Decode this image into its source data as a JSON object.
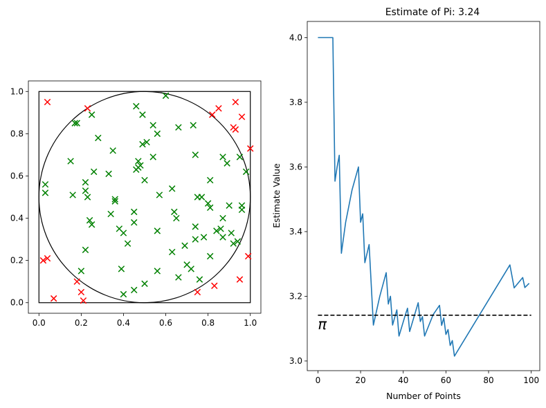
{
  "chart_data": [
    {
      "type": "scatter",
      "title": "",
      "xlabel": "",
      "ylabel": "",
      "xlim": [
        -0.05,
        1.05
      ],
      "ylim": [
        -0.05,
        1.05
      ],
      "x_ticks": [
        "0.0",
        "0.2",
        "0.4",
        "0.6",
        "0.8",
        "1.0"
      ],
      "y_ticks": [
        "0.0",
        "0.2",
        "0.4",
        "0.6",
        "0.8",
        "1.0"
      ],
      "shapes": {
        "square": {
          "x": [
            0,
            1
          ],
          "y": [
            0,
            1
          ]
        },
        "circle": {
          "center": [
            0.5,
            0.5
          ],
          "radius": 0.5
        }
      },
      "colors": {
        "inside": "#008000",
        "outside": "#ff0000",
        "outline": "#000000"
      },
      "series": [
        {
          "values": [
            [
              0.03,
              0.56
            ],
            [
              0.03,
              0.52
            ],
            [
              0.15,
              0.67
            ],
            [
              0.16,
              0.51
            ],
            [
              0.17,
              0.85
            ],
            [
              0.18,
              0.85
            ],
            [
              0.22,
              0.57
            ],
            [
              0.22,
              0.53
            ],
            [
              0.23,
              0.5
            ],
            [
              0.24,
              0.39
            ],
            [
              0.25,
              0.37
            ],
            [
              0.22,
              0.25
            ],
            [
              0.2,
              0.15
            ],
            [
              0.25,
              0.89
            ],
            [
              0.26,
              0.62
            ],
            [
              0.28,
              0.78
            ],
            [
              0.33,
              0.61
            ],
            [
              0.35,
              0.72
            ],
            [
              0.34,
              0.42
            ],
            [
              0.36,
              0.49
            ],
            [
              0.36,
              0.48
            ],
            [
              0.38,
              0.35
            ],
            [
              0.4,
              0.33
            ],
            [
              0.42,
              0.28
            ],
            [
              0.39,
              0.16
            ],
            [
              0.4,
              0.04
            ],
            [
              0.45,
              0.06
            ],
            [
              0.45,
              0.38
            ],
            [
              0.45,
              0.43
            ],
            [
              0.46,
              0.63
            ],
            [
              0.47,
              0.64
            ],
            [
              0.47,
              0.67
            ],
            [
              0.48,
              0.65
            ],
            [
              0.46,
              0.93
            ],
            [
              0.49,
              0.89
            ],
            [
              0.49,
              0.75
            ],
            [
              0.51,
              0.76
            ],
            [
              0.5,
              0.58
            ],
            [
              0.5,
              0.09
            ],
            [
              0.54,
              0.84
            ],
            [
              0.54,
              0.69
            ],
            [
              0.56,
              0.8
            ],
            [
              0.57,
              0.51
            ],
            [
              0.56,
              0.34
            ],
            [
              0.56,
              0.15
            ],
            [
              0.6,
              0.98
            ],
            [
              0.63,
              0.54
            ],
            [
              0.64,
              0.43
            ],
            [
              0.65,
              0.4
            ],
            [
              0.63,
              0.24
            ],
            [
              0.66,
              0.83
            ],
            [
              0.66,
              0.12
            ],
            [
              0.69,
              0.27
            ],
            [
              0.7,
              0.18
            ],
            [
              0.72,
              0.16
            ],
            [
              0.73,
              0.84
            ],
            [
              0.74,
              0.7
            ],
            [
              0.74,
              0.36
            ],
            [
              0.74,
              0.3
            ],
            [
              0.75,
              0.5
            ],
            [
              0.76,
              0.11
            ],
            [
              0.77,
              0.5
            ],
            [
              0.78,
              0.31
            ],
            [
              0.8,
              0.47
            ],
            [
              0.81,
              0.58
            ],
            [
              0.81,
              0.45
            ],
            [
              0.81,
              0.22
            ],
            [
              0.84,
              0.34
            ],
            [
              0.86,
              0.35
            ],
            [
              0.87,
              0.69
            ],
            [
              0.87,
              0.4
            ],
            [
              0.87,
              0.31
            ],
            [
              0.89,
              0.66
            ],
            [
              0.9,
              0.46
            ],
            [
              0.91,
              0.33
            ],
            [
              0.92,
              0.28
            ],
            [
              0.94,
              0.29
            ],
            [
              0.95,
              0.69
            ],
            [
              0.96,
              0.46
            ],
            [
              0.96,
              0.44
            ],
            [
              0.98,
              0.62
            ]
          ],
          "marker": "x",
          "color": "#008000"
        },
        {
          "values": [
            [
              0.04,
              0.95
            ],
            [
              0.02,
              0.2
            ],
            [
              0.04,
              0.21
            ],
            [
              0.07,
              0.02
            ],
            [
              0.18,
              0.1
            ],
            [
              0.2,
              0.05
            ],
            [
              0.21,
              0.01
            ],
            [
              0.23,
              0.92
            ],
            [
              0.75,
              0.05
            ],
            [
              0.82,
              0.89
            ],
            [
              0.85,
              0.92
            ],
            [
              0.83,
              0.08
            ],
            [
              0.92,
              0.83
            ],
            [
              0.93,
              0.82
            ],
            [
              0.93,
              0.95
            ],
            [
              0.96,
              0.88
            ],
            [
              0.95,
              0.11
            ],
            [
              0.99,
              0.22
            ],
            [
              1.0,
              0.73
            ]
          ],
          "marker": "x",
          "color": "#ff0000"
        }
      ]
    },
    {
      "type": "line",
      "title": "Estimate of Pi: 3.24",
      "xlabel": "Number of Points",
      "ylabel": "Estimate Value",
      "xlim": [
        -5,
        104
      ],
      "ylim": [
        2.97,
        4.05
      ],
      "x_ticks": [
        "0",
        "20",
        "40",
        "60",
        "80",
        "100"
      ],
      "y_ticks": [
        "3.0",
        "3.2",
        "3.4",
        "3.6",
        "3.8",
        "4.0"
      ],
      "colors": {
        "line": "#1f77b4",
        "reference": "#000000"
      },
      "series": [
        {
          "values": [
            [
              0,
              4.0
            ],
            [
              7,
              4.0
            ],
            [
              8,
              3.556
            ],
            [
              9,
              3.6
            ],
            [
              10,
              3.636
            ],
            [
              11,
              3.333
            ],
            [
              13,
              3.429
            ],
            [
              16,
              3.529
            ],
            [
              19,
              3.6
            ],
            [
              20,
              3.429
            ],
            [
              21,
              3.455
            ],
            [
              22,
              3.304
            ],
            [
              24,
              3.36
            ],
            [
              26,
              3.111
            ],
            [
              29,
              3.2
            ],
            [
              32,
              3.273
            ],
            [
              33,
              3.176
            ],
            [
              34,
              3.2
            ],
            [
              35,
              3.111
            ],
            [
              37,
              3.158
            ],
            [
              38,
              3.077
            ],
            [
              41,
              3.143
            ],
            [
              42,
              3.163
            ],
            [
              43,
              3.091
            ],
            [
              47,
              3.18
            ],
            [
              48,
              3.122
            ],
            [
              49,
              3.137
            ],
            [
              50,
              3.077
            ],
            [
              54,
              3.143
            ],
            [
              57,
              3.172
            ],
            [
              58,
              3.11
            ],
            [
              59,
              3.133
            ],
            [
              60,
              3.082
            ],
            [
              61,
              3.097
            ],
            [
              62,
              3.048
            ],
            [
              63,
              3.063
            ],
            [
              64,
              3.015
            ],
            [
              90,
              3.297
            ],
            [
              92,
              3.226
            ],
            [
              96,
              3.258
            ],
            [
              97,
              3.227
            ],
            [
              99,
              3.24
            ]
          ],
          "color": "#1f77b4"
        },
        {
          "name": "π",
          "values": [
            [
              0,
              3.14159
            ],
            [
              100,
              3.14159
            ]
          ],
          "style": "dashed",
          "color": "#000000"
        }
      ]
    }
  ]
}
